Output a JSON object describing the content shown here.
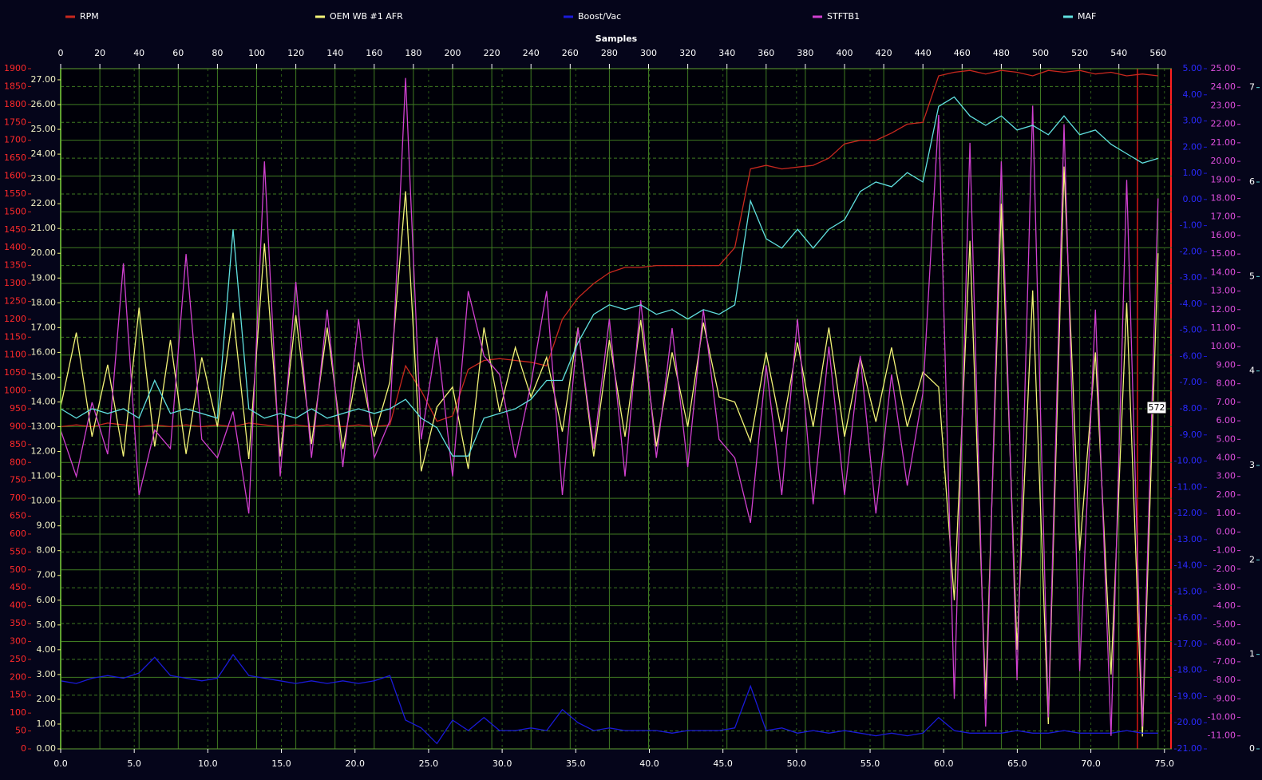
{
  "chart_data": {
    "type": "line",
    "x_label": "Samples",
    "xlim": [
      0,
      567
    ],
    "xticks": [
      0,
      20,
      40,
      60,
      80,
      100,
      120,
      140,
      160,
      180,
      200,
      220,
      240,
      260,
      280,
      300,
      320,
      340,
      360,
      380,
      400,
      420,
      440,
      460,
      480,
      500,
      520,
      540,
      560
    ],
    "x2lim": [
      0,
      75.5
    ],
    "x2ticks": [
      {
        "value": 0,
        "label": "0.0"
      },
      {
        "value": 5,
        "label": "5.0"
      },
      {
        "value": 10,
        "label": "10.0"
      },
      {
        "value": 15,
        "label": "15.0"
      },
      {
        "value": 20,
        "label": "20.0"
      },
      {
        "value": 25,
        "label": "25.0"
      },
      {
        "value": 30,
        "label": "30.0"
      },
      {
        "value": 35,
        "label": "35.0"
      },
      {
        "value": 40,
        "label": "40.0"
      },
      {
        "value": 45,
        "label": "45.0"
      },
      {
        "value": 50,
        "label": "50.0"
      },
      {
        "value": 55,
        "label": "55.0"
      },
      {
        "value": 60,
        "label": "60.0"
      },
      {
        "value": 65,
        "label": "65.0"
      },
      {
        "value": 70,
        "label": "70.0"
      },
      {
        "value": 75,
        "label": "75.0"
      }
    ],
    "ylim": [
      0,
      1900
    ],
    "yticks": [
      0,
      50,
      100,
      150,
      200,
      250,
      300,
      350,
      400,
      450,
      500,
      550,
      600,
      650,
      700,
      750,
      800,
      850,
      900,
      950,
      1000,
      1050,
      1100,
      1150,
      1200,
      1250,
      1300,
      1350,
      1400,
      1450,
      1500,
      1550,
      1600,
      1650,
      1700,
      1750,
      1800,
      1850,
      1900
    ],
    "y2lim": [
      0,
      27.45
    ],
    "y2ticks": [
      {
        "value": 0,
        "label": "0.00"
      },
      {
        "value": 1,
        "label": "1.00"
      },
      {
        "value": 2,
        "label": "2.00"
      },
      {
        "value": 3,
        "label": "3.00"
      },
      {
        "value": 4,
        "label": "4.00"
      },
      {
        "value": 5,
        "label": "5.00"
      },
      {
        "value": 6,
        "label": "6.00"
      },
      {
        "value": 7,
        "label": "7.00"
      },
      {
        "value": 8,
        "label": "8.00"
      },
      {
        "value": 9,
        "label": "9.00"
      },
      {
        "value": 10,
        "label": "10.00"
      },
      {
        "value": 11,
        "label": "11.00"
      },
      {
        "value": 12,
        "label": "12.00"
      },
      {
        "value": 13,
        "label": "13.00"
      },
      {
        "value": 14,
        "label": "14.00"
      },
      {
        "value": 15,
        "label": "15.00"
      },
      {
        "value": 16,
        "label": "16.00"
      },
      {
        "value": 17,
        "label": "17.00"
      },
      {
        "value": 18,
        "label": "18.00"
      },
      {
        "value": 19,
        "label": "19.00"
      },
      {
        "value": 20,
        "label": "20.00"
      },
      {
        "value": 21,
        "label": "21.00"
      },
      {
        "value": 22,
        "label": "22.00"
      },
      {
        "value": 23,
        "label": "23.00"
      },
      {
        "value": 24,
        "label": "24.00"
      },
      {
        "value": 25,
        "label": "25.00"
      },
      {
        "value": 26,
        "label": "26.00"
      },
      {
        "value": 27,
        "label": "27.00"
      }
    ],
    "y3lim": [
      -21,
      5
    ],
    "y3ticks": [
      {
        "value": 5,
        "label": "5.00"
      },
      {
        "value": 4,
        "label": "4.00"
      },
      {
        "value": 3,
        "label": "3.00"
      },
      {
        "value": 2,
        "label": "2.00"
      },
      {
        "value": 1,
        "label": "1.00"
      },
      {
        "value": 0,
        "label": "0.00"
      },
      {
        "value": -1,
        "label": "-1.00"
      },
      {
        "value": -2,
        "label": "-2.00"
      },
      {
        "value": -3,
        "label": "-3.00"
      },
      {
        "value": -4,
        "label": "-4.00"
      },
      {
        "value": -5,
        "label": "-5.00"
      },
      {
        "value": -6,
        "label": "-6.00"
      },
      {
        "value": -7,
        "label": "-7.00"
      },
      {
        "value": -8,
        "label": "-8.00"
      },
      {
        "value": -9,
        "label": "-9.00"
      },
      {
        "value": -10,
        "label": "-10.00"
      },
      {
        "value": -11,
        "label": "-11.00"
      },
      {
        "value": -12,
        "label": "-12.00"
      },
      {
        "value": -13,
        "label": "-13.00"
      },
      {
        "value": -14,
        "label": "-14.00"
      },
      {
        "value": -15,
        "label": "-15.00"
      },
      {
        "value": -16,
        "label": "-16.00"
      },
      {
        "value": -17,
        "label": "-17.00"
      },
      {
        "value": -18,
        "label": "-18.00"
      },
      {
        "value": -19,
        "label": "-19.00"
      },
      {
        "value": -20,
        "label": "-20.00"
      },
      {
        "value": -21,
        "label": "-21.00"
      }
    ],
    "y4lim": [
      -11.7,
      25
    ],
    "y4ticks": [
      {
        "value": 25,
        "label": "25.00"
      },
      {
        "value": 24,
        "label": "24.00"
      },
      {
        "value": 23,
        "label": "23.00"
      },
      {
        "value": 22,
        "label": "22.00"
      },
      {
        "value": 21,
        "label": "21.00"
      },
      {
        "value": 20,
        "label": "20.00"
      },
      {
        "value": 19,
        "label": "19.00"
      },
      {
        "value": 18,
        "label": "18.00"
      },
      {
        "value": 17,
        "label": "17.00"
      },
      {
        "value": 16,
        "label": "16.00"
      },
      {
        "value": 15,
        "label": "15.00"
      },
      {
        "value": 14,
        "label": "14.00"
      },
      {
        "value": 13,
        "label": "13.00"
      },
      {
        "value": 12,
        "label": "12.00"
      },
      {
        "value": 11,
        "label": "11.00"
      },
      {
        "value": 10,
        "label": "10.00"
      },
      {
        "value": 9,
        "label": "9.00"
      },
      {
        "value": 8,
        "label": "8.00"
      },
      {
        "value": 7,
        "label": "7.00"
      },
      {
        "value": 6,
        "label": "6.00"
      },
      {
        "value": 5,
        "label": "5.00"
      },
      {
        "value": 4,
        "label": "4.00"
      },
      {
        "value": 3,
        "label": "3.00"
      },
      {
        "value": 2,
        "label": "2.00"
      },
      {
        "value": 1,
        "label": "1.00"
      },
      {
        "value": 0,
        "label": "0.00"
      },
      {
        "value": -1,
        "label": "-1.00"
      },
      {
        "value": -2,
        "label": "-2.00"
      },
      {
        "value": -3,
        "label": "-3.00"
      },
      {
        "value": -4,
        "label": "-4.00"
      },
      {
        "value": -5,
        "label": "-5.00"
      },
      {
        "value": -6,
        "label": "-6.00"
      },
      {
        "value": -7,
        "label": "-7.00"
      },
      {
        "value": -8,
        "label": "-8.00"
      },
      {
        "value": -9,
        "label": "-9.00"
      },
      {
        "value": -10,
        "label": "-10.00"
      },
      {
        "value": -11,
        "label": "-11.00"
      }
    ],
    "y5lim": [
      0,
      7.2
    ],
    "y5ticks": [
      0,
      1,
      2,
      3,
      4,
      5,
      6,
      7
    ],
    "grid": true,
    "legend": "top",
    "annotations": [
      "572"
    ],
    "x": [
      0,
      8,
      16,
      24,
      32,
      40,
      48,
      56,
      64,
      72,
      80,
      88,
      96,
      104,
      112,
      120,
      128,
      136,
      144,
      152,
      160,
      168,
      176,
      184,
      192,
      200,
      208,
      216,
      224,
      232,
      240,
      248,
      256,
      264,
      272,
      280,
      288,
      296,
      304,
      312,
      320,
      328,
      336,
      344,
      352,
      360,
      368,
      376,
      384,
      392,
      400,
      408,
      416,
      424,
      432,
      440,
      448,
      456,
      464,
      472,
      480,
      488,
      496,
      504,
      512,
      520,
      528,
      536,
      544,
      552,
      560
    ],
    "series": [
      {
        "name": "RPM",
        "color": "#c8281e",
        "axis": "y",
        "values": [
          900,
          905,
          900,
          910,
          905,
          900,
          905,
          900,
          905,
          900,
          905,
          900,
          910,
          905,
          900,
          905,
          900,
          905,
          900,
          905,
          900,
          905,
          1070,
          1000,
          915,
          930,
          1060,
          1085,
          1090,
          1085,
          1080,
          1070,
          1200,
          1260,
          1300,
          1330,
          1345,
          1345,
          1350,
          1350,
          1350,
          1350,
          1350,
          1400,
          1620,
          1630,
          1620,
          1625,
          1630,
          1650,
          1690,
          1700,
          1700,
          1720,
          1745,
          1750,
          1880,
          1890,
          1895,
          1885,
          1895,
          1890,
          1880,
          1895,
          1890,
          1895,
          1885,
          1890,
          1880,
          1885,
          1880
        ]
      },
      {
        "name": "OEM WB #1 AFR",
        "color": "#f4f478",
        "axis": "y2",
        "values": [
          13.8,
          16.8,
          12.6,
          15.5,
          11.8,
          17.8,
          12.2,
          16.5,
          11.9,
          15.8,
          13.0,
          17.6,
          11.7,
          20.4,
          11.8,
          17.5,
          12.3,
          17.0,
          12.1,
          15.6,
          12.6,
          14.8,
          22.5,
          11.2,
          13.8,
          14.6,
          11.3,
          17.0,
          13.6,
          16.2,
          14.2,
          15.8,
          12.8,
          17.0,
          11.8,
          16.5,
          12.6,
          17.3,
          12.2,
          16.0,
          13.0,
          17.2,
          14.2,
          14.0,
          12.4,
          16.0,
          12.8,
          16.4,
          13.0,
          17.0,
          12.6,
          15.8,
          13.2,
          16.2,
          13.0,
          15.2,
          14.6,
          6.0,
          20.5,
          2.0,
          22.0,
          4.0,
          18.5,
          1.0,
          23.5,
          8.0,
          16.0,
          3.0,
          18.0,
          0.5,
          20.0
        ]
      },
      {
        "name": "Boost/Vac",
        "color": "#1a1ad8",
        "axis": "y3",
        "values": [
          -18.4,
          -18.5,
          -18.3,
          -18.2,
          -18.3,
          -18.1,
          -17.5,
          -18.2,
          -18.3,
          -18.4,
          -18.3,
          -17.4,
          -18.2,
          -18.3,
          -18.4,
          -18.5,
          -18.4,
          -18.5,
          -18.4,
          -18.5,
          -18.4,
          -18.2,
          -19.9,
          -20.2,
          -20.8,
          -19.9,
          -20.3,
          -19.8,
          -20.3,
          -20.3,
          -20.2,
          -20.3,
          -19.5,
          -20.0,
          -20.3,
          -20.2,
          -20.3,
          -20.3,
          -20.3,
          -20.4,
          -20.3,
          -20.3,
          -20.3,
          -20.2,
          -18.6,
          -20.3,
          -20.2,
          -20.4,
          -20.3,
          -20.4,
          -20.3,
          -20.4,
          -20.5,
          -20.4,
          -20.5,
          -20.4,
          -19.8,
          -20.3,
          -20.4,
          -20.4,
          -20.4,
          -20.3,
          -20.4,
          -20.4,
          -20.3,
          -20.4,
          -20.4,
          -20.4,
          -20.3,
          -20.4,
          -20.4
        ]
      },
      {
        "name": "STFTB1",
        "color": "#d040d0",
        "axis": "y4",
        "values": [
          5.5,
          3.0,
          7.0,
          4.2,
          14.5,
          2.0,
          5.5,
          4.5,
          15.0,
          5.0,
          4.0,
          6.5,
          1.0,
          20.0,
          3.0,
          13.5,
          4.0,
          12.0,
          3.5,
          11.5,
          4.0,
          6.0,
          24.5,
          5.0,
          10.5,
          3.0,
          13.0,
          9.5,
          8.5,
          4.0,
          8.0,
          13.0,
          2.0,
          11.0,
          4.5,
          11.5,
          3.0,
          12.5,
          4.0,
          11.0,
          3.5,
          12.0,
          5.0,
          4.0,
          0.5,
          9.0,
          2.0,
          11.5,
          1.5,
          10.0,
          2.0,
          9.5,
          1.0,
          8.5,
          2.5,
          7.5,
          22.5,
          -9.0,
          21.0,
          -10.5,
          20.0,
          -8.0,
          23.0,
          -10.0,
          22.0,
          -7.5,
          12.0,
          -11.0,
          19.0,
          -10.5,
          18.0
        ]
      },
      {
        "name": "MAF",
        "color": "#60e0e0",
        "axis": "y5",
        "values": [
          3.6,
          3.5,
          3.6,
          3.55,
          3.6,
          3.5,
          3.9,
          3.55,
          3.6,
          3.55,
          3.5,
          5.5,
          3.6,
          3.5,
          3.55,
          3.5,
          3.6,
          3.5,
          3.55,
          3.6,
          3.55,
          3.6,
          3.7,
          3.5,
          3.4,
          3.1,
          3.1,
          3.5,
          3.55,
          3.6,
          3.7,
          3.9,
          3.9,
          4.3,
          4.6,
          4.7,
          4.65,
          4.7,
          4.6,
          4.65,
          4.55,
          4.65,
          4.6,
          4.7,
          5.8,
          5.4,
          5.3,
          5.5,
          5.3,
          5.5,
          5.6,
          5.9,
          6.0,
          5.95,
          6.1,
          6.0,
          6.8,
          6.9,
          6.7,
          6.6,
          6.7,
          6.55,
          6.6,
          6.5,
          6.7,
          6.5,
          6.55,
          6.4,
          6.3,
          6.2,
          6.25
        ]
      }
    ]
  }
}
